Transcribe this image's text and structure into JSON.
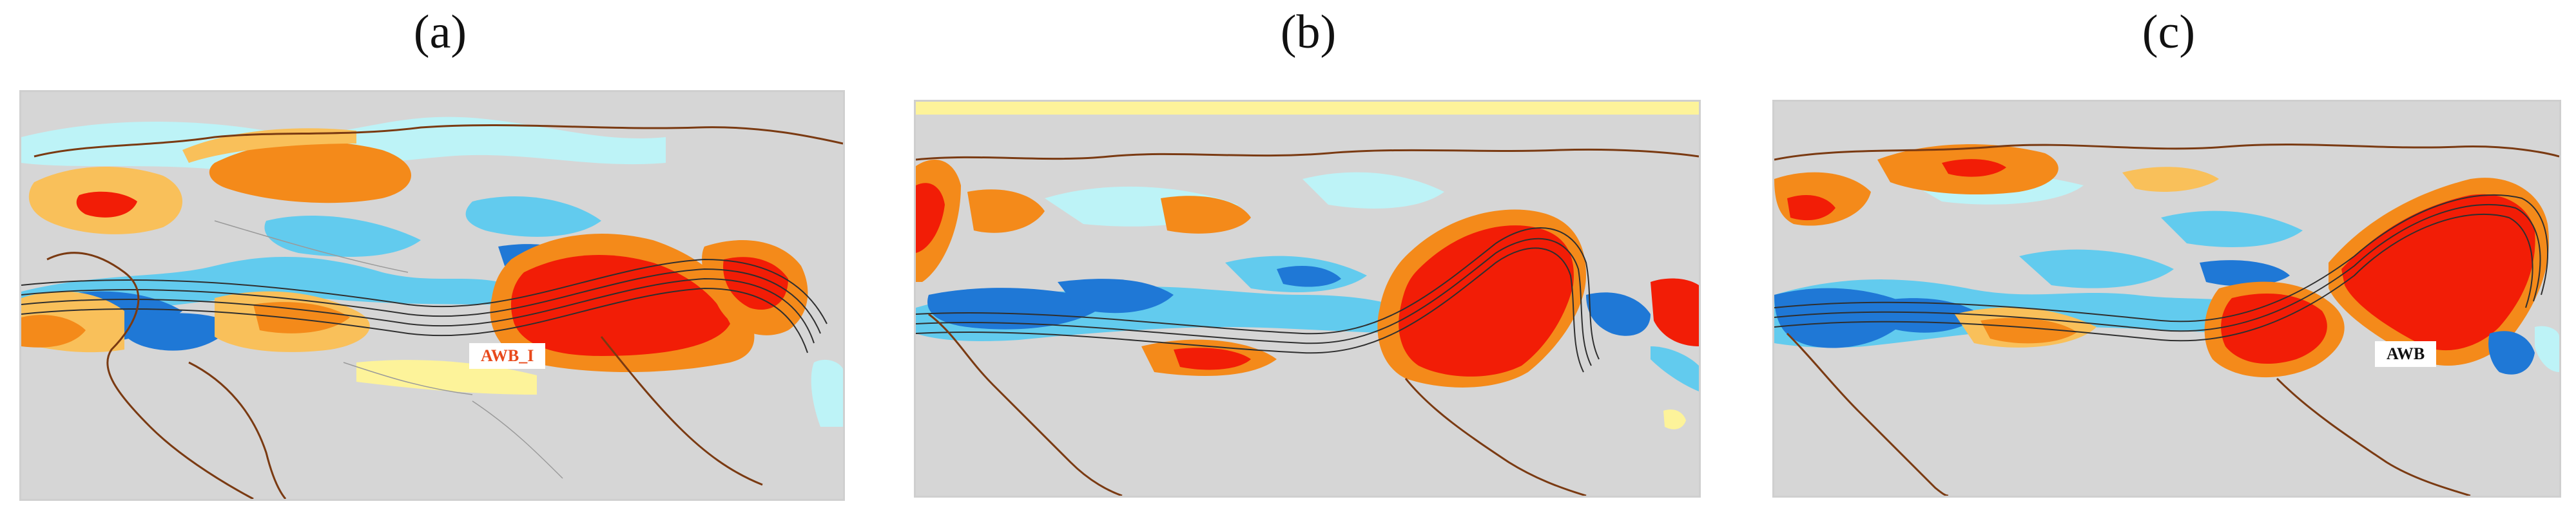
{
  "panels": [
    {
      "label": "(a)",
      "tag": "AWB_I",
      "tag_color": "#e8491b"
    },
    {
      "label": "(b)"
    },
    {
      "label": "(c)",
      "tag": "AWB",
      "tag_color": "#111111"
    }
  ],
  "colors": {
    "background": "#d6d6d6",
    "deep_red": "#f21d06",
    "orange": "#f48a1a",
    "light_orange": "#f9c05a",
    "yellow": "#fdf39a",
    "light_cyan": "#bdf3f7",
    "cyan": "#62cbee",
    "blue": "#1f78d6",
    "coastline": "#7a3a12",
    "contour": "#2f2f2f"
  }
}
